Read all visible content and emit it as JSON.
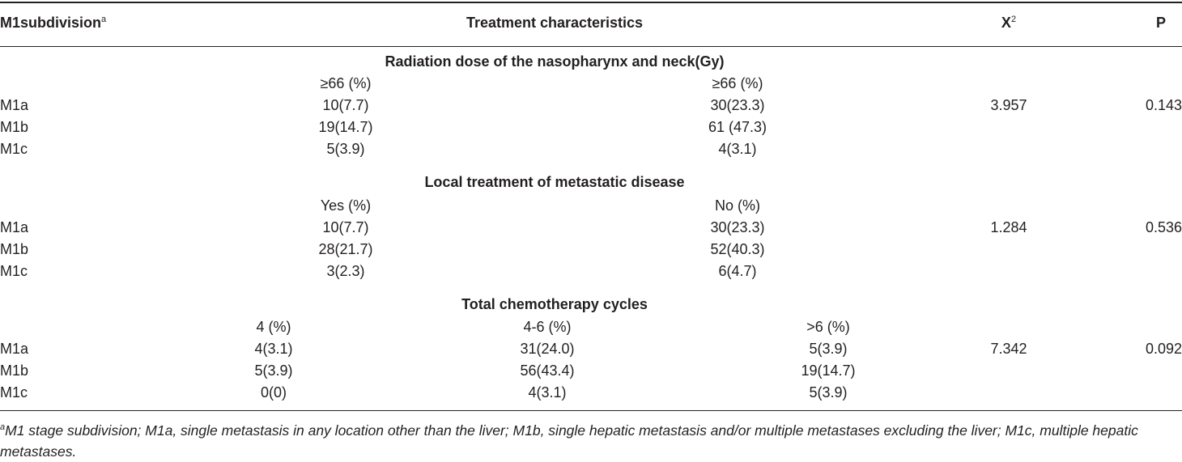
{
  "header": {
    "col1": "M1subdivision",
    "col1_sup": "a",
    "col2": "Treatment characteristics",
    "col3_base": "X",
    "col3_sup": "2",
    "col4": "P"
  },
  "sections": [
    {
      "title": "Radiation dose of the nasopharynx and neck(Gy)",
      "cols": [
        "≥66 (%)",
        "≥66 (%)"
      ],
      "rows": [
        {
          "label": "M1a",
          "vals": [
            "10(7.7)",
            "30(23.3)"
          ],
          "chi": "3.957",
          "p": "0.143"
        },
        {
          "label": "M1b",
          "vals": [
            "19(14.7)",
            "61 (47.3)"
          ],
          "chi": "",
          "p": ""
        },
        {
          "label": "M1c",
          "vals": [
            "5(3.9)",
            "4(3.1)"
          ],
          "chi": "",
          "p": ""
        }
      ]
    },
    {
      "title": "Local treatment of metastatic disease",
      "cols": [
        "Yes (%)",
        "No (%)"
      ],
      "rows": [
        {
          "label": "M1a",
          "vals": [
            "10(7.7)",
            "30(23.3)"
          ],
          "chi": "1.284",
          "p": "0.536"
        },
        {
          "label": "M1b",
          "vals": [
            "28(21.7)",
            "52(40.3)"
          ],
          "chi": "",
          "p": ""
        },
        {
          "label": "M1c",
          "vals": [
            "3(2.3)",
            "6(4.7)"
          ],
          "chi": "",
          "p": ""
        }
      ]
    },
    {
      "title": "Total chemotherapy cycles",
      "cols": [
        "4 (%)",
        "4-6 (%)",
        ">6 (%)"
      ],
      "rows": [
        {
          "label": "M1a",
          "vals": [
            "4(3.1)",
            "31(24.0)",
            "5(3.9)"
          ],
          "chi": "7.342",
          "p": "0.092"
        },
        {
          "label": "M1b",
          "vals": [
            "5(3.9)",
            "56(43.4)",
            "19(14.7)"
          ],
          "chi": "",
          "p": ""
        },
        {
          "label": "M1c",
          "vals": [
            "0(0)",
            "4(3.1)",
            "5(3.9)"
          ],
          "chi": "",
          "p": ""
        }
      ]
    }
  ],
  "footnote": {
    "sup": "a",
    "text": "M1 stage subdivision; M1a, single metastasis in any location other than the liver; M1b, single hepatic metastasis and/or multiple metastases excluding the liver; M1c, multiple hepatic metastases."
  }
}
